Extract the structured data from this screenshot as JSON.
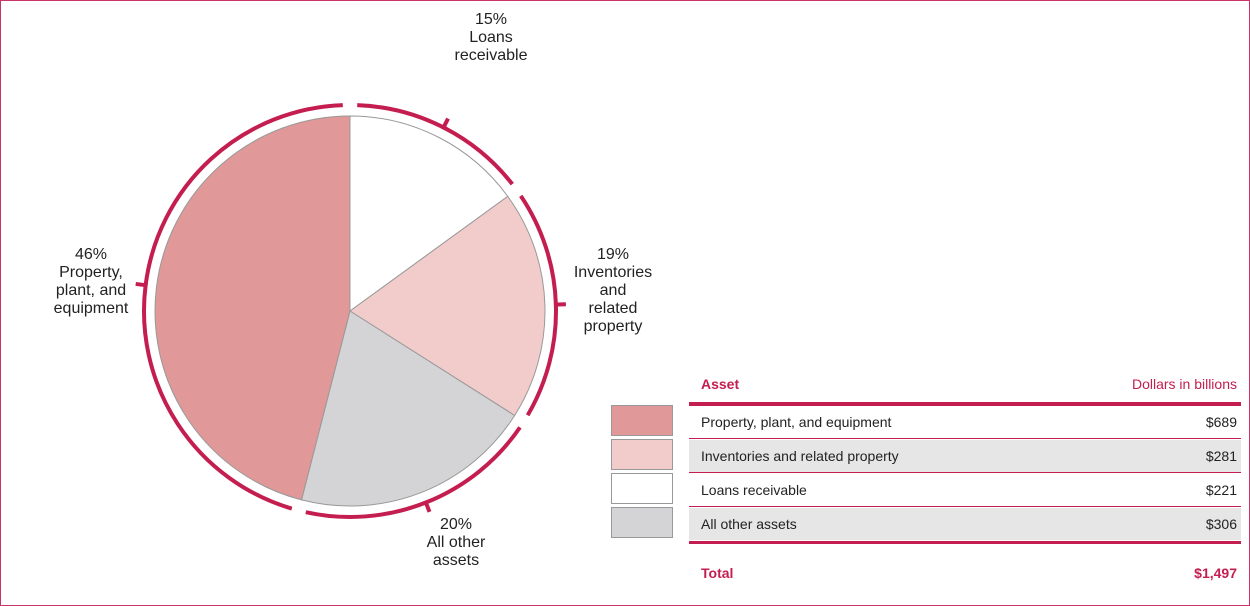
{
  "chart_data": {
    "type": "pie",
    "categories": [
      "Loans\nreceivable",
      "Inventories\nand\nrelated\nproperty",
      "All other\nassets",
      "Property,\nplant, and\nequipment"
    ],
    "values": [
      15,
      19,
      20,
      46
    ],
    "value_labels": [
      "15%",
      "19%",
      "20%",
      "46%"
    ],
    "colors": [
      "#ffffff",
      "#f2cccb",
      "#d4d4d6",
      "#e09898"
    ]
  },
  "table": {
    "header": [
      "Asset",
      "Dollars in billions"
    ],
    "rows": [
      [
        "Property, plant, and equipment",
        "$689"
      ],
      [
        "Inventories and related property",
        "$281"
      ],
      [
        "Loans receivable",
        "$221"
      ],
      [
        "All other assets",
        "$306"
      ]
    ],
    "total": [
      "Total",
      "$1,497"
    ]
  }
}
